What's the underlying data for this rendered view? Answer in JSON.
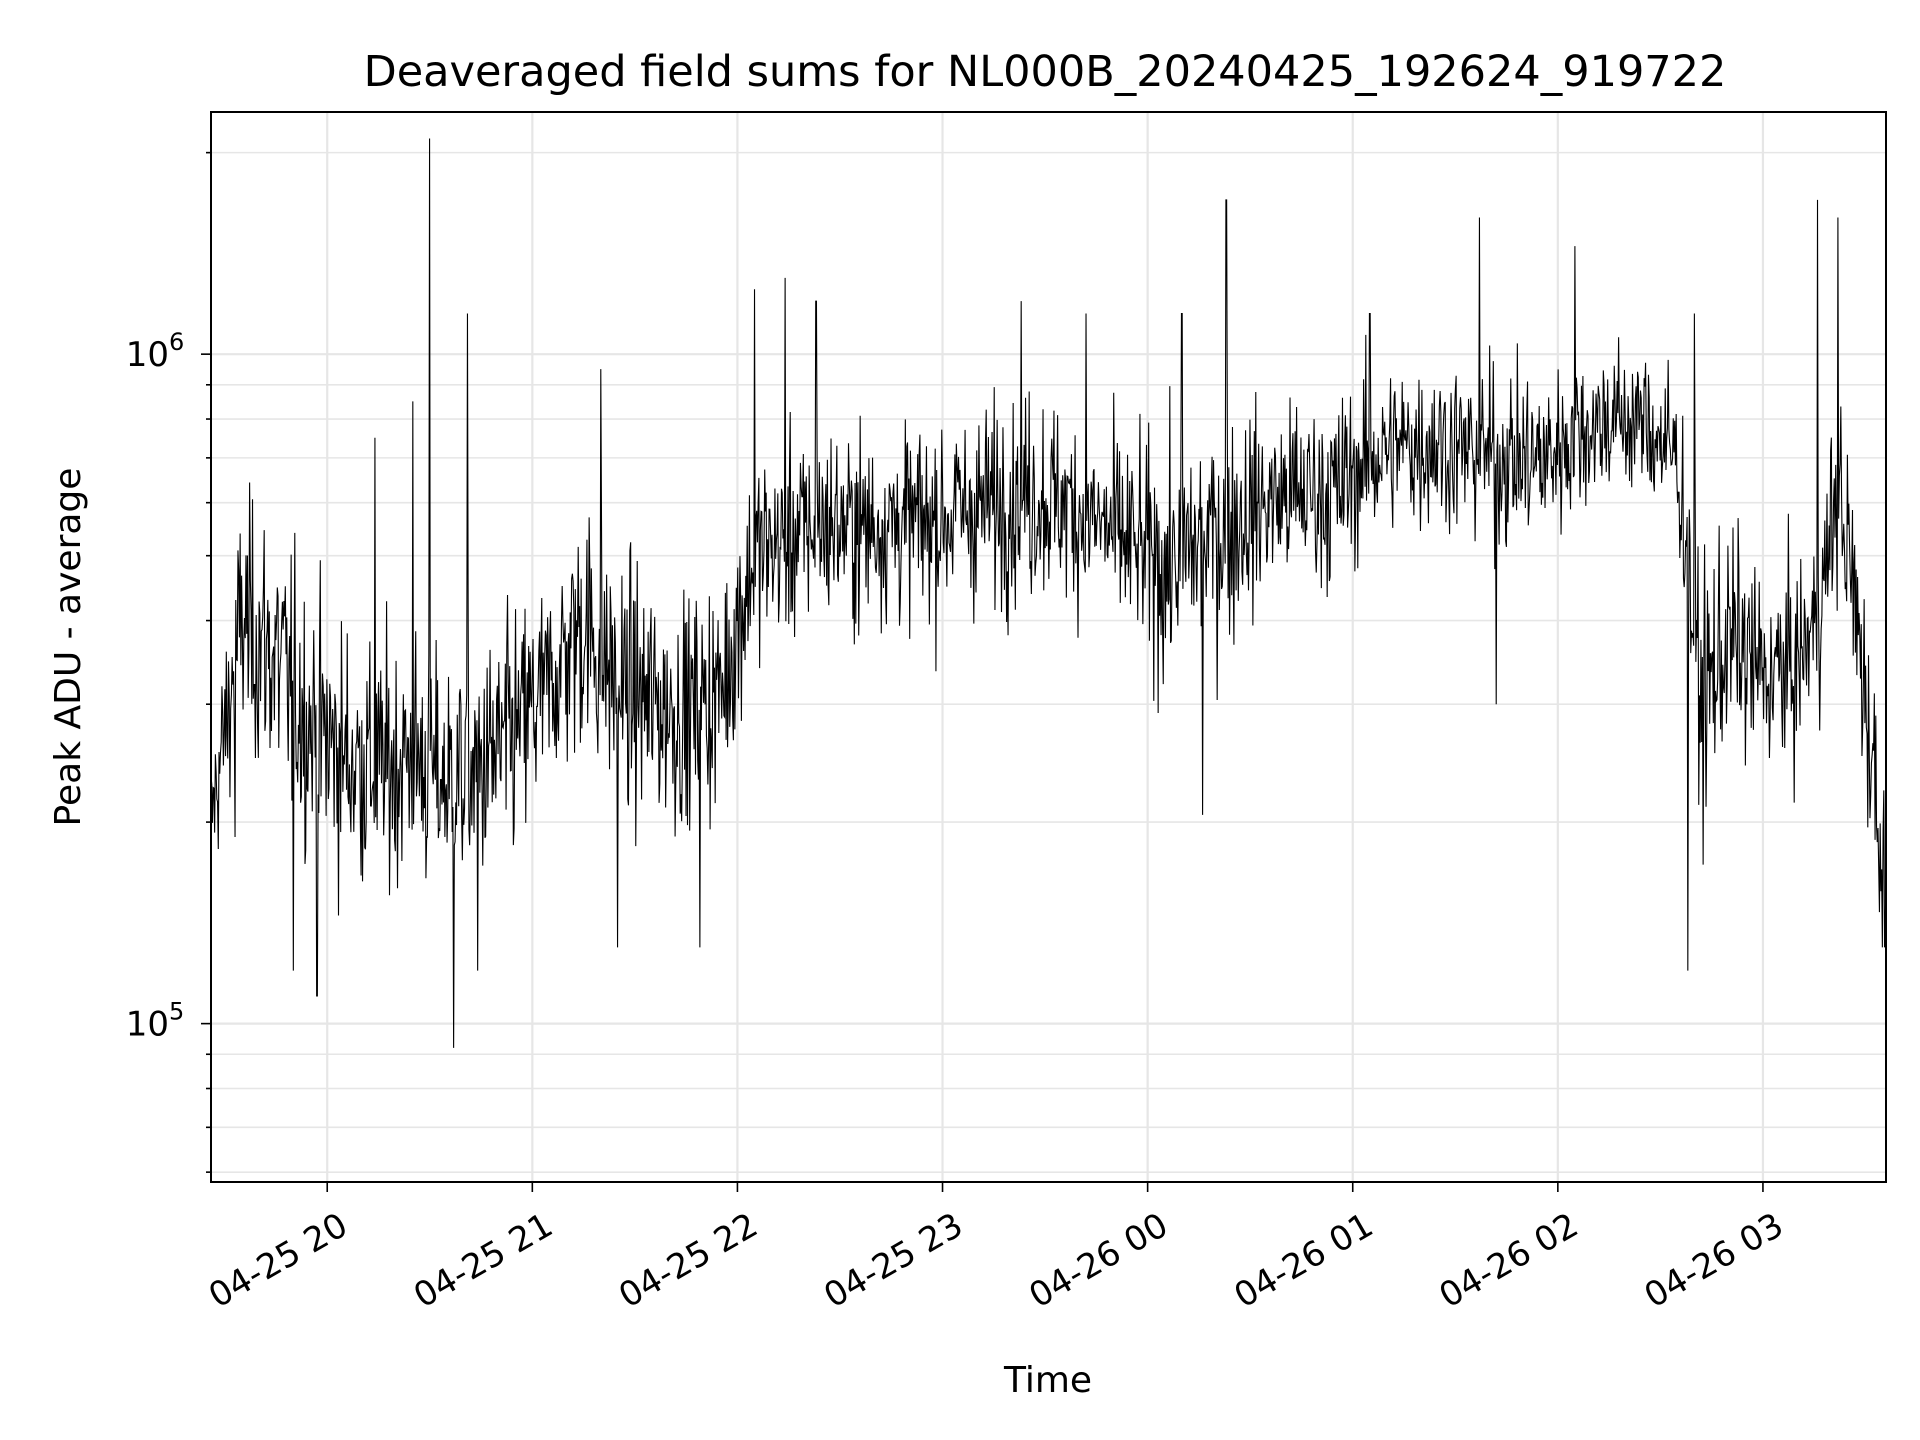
{
  "chart_data": {
    "type": "line",
    "title": "Deaveraged field sums for NL000B_20240425_192624_919722",
    "xlabel": "Time",
    "ylabel": "Peak ADU - average",
    "yscale": "log",
    "grid": true,
    "line_color": "#000000",
    "grid_color": "#e6e6e6",
    "xlim": [
      "2024-04-25 19:26",
      "2024-04-26 03:36"
    ],
    "ylim": [
      58000,
      2300000
    ],
    "xtick_labels": [
      "04-25 20",
      "04-25 21",
      "04-25 22",
      "04-25 23",
      "04-26 00",
      "04-26 01",
      "04-26 02",
      "04-26 03"
    ],
    "xtick_values": [
      "2024-04-25 20:00",
      "2024-04-25 21:00",
      "2024-04-25 22:00",
      "2024-04-25 23:00",
      "2024-04-26 00:00",
      "2024-04-26 01:00",
      "2024-04-26 02:00",
      "2024-04-26 03:00"
    ],
    "ytick_major": [
      {
        "value": 100000,
        "base": "10",
        "exp": "5"
      },
      {
        "value": 1000000,
        "base": "10",
        "exp": "6"
      }
    ],
    "series": [
      {
        "x": [
          "2024-04-25 19:26",
          "2024-04-25 19:35",
          "2024-04-25 19:45",
          "2024-04-25 19:55",
          "2024-04-25 20:05",
          "2024-04-25 20:15",
          "2024-04-25 20:25",
          "2024-04-25 20:35",
          "2024-04-25 20:45",
          "2024-04-25 20:55",
          "2024-04-25 21:05",
          "2024-04-25 21:15",
          "2024-04-25 21:25",
          "2024-04-25 21:35",
          "2024-04-25 21:45",
          "2024-04-25 21:55",
          "2024-04-25 22:05",
          "2024-04-25 22:15",
          "2024-04-25 22:25",
          "2024-04-25 22:35",
          "2024-04-25 22:45",
          "2024-04-25 22:55",
          "2024-04-25 23:05",
          "2024-04-25 23:15",
          "2024-04-25 23:25",
          "2024-04-25 23:35",
          "2024-04-25 23:45",
          "2024-04-25 23:55",
          "2024-04-26 00:05",
          "2024-04-26 00:15",
          "2024-04-26 00:25",
          "2024-04-26 00:35",
          "2024-04-26 00:45",
          "2024-04-26 00:55",
          "2024-04-26 01:05",
          "2024-04-26 01:15",
          "2024-04-26 01:25",
          "2024-04-26 01:35",
          "2024-04-26 01:45",
          "2024-04-26 01:55",
          "2024-04-26 02:05",
          "2024-04-26 02:15",
          "2024-04-26 02:25",
          "2024-04-26 02:35",
          "2024-04-26 02:42",
          "2024-04-26 02:50",
          "2024-04-26 03:00",
          "2024-04-26 03:10",
          "2024-04-26 03:17",
          "2024-04-26 03:22",
          "2024-04-26 03:28",
          "2024-04-26 03:35"
        ],
        "center": [
          200000,
          400000,
          350000,
          280000,
          250000,
          240000,
          250000,
          230000,
          240000,
          270000,
          320000,
          400000,
          320000,
          300000,
          290000,
          310000,
          500000,
          530000,
          560000,
          550000,
          560000,
          560000,
          580000,
          600000,
          620000,
          600000,
          560000,
          520000,
          480000,
          520000,
          560000,
          600000,
          620000,
          620000,
          700000,
          730000,
          740000,
          710000,
          700000,
          690000,
          760000,
          800000,
          790000,
          700000,
          300000,
          380000,
          330000,
          340000,
          420000,
          650000,
          380000,
          180000
        ],
        "upper": [
          420000,
          800000,
          780000,
          600000,
          580000,
          560000,
          620000,
          520000,
          500000,
          680000,
          700000,
          880000,
          620000,
          700000,
          700000,
          720000,
          900000,
          1000000,
          1050000,
          1000000,
          980000,
          950000,
          1050000,
          1100000,
          1200000,
          1000000,
          990000,
          950000,
          1000000,
          1100000,
          1150000,
          1050000,
          1100000,
          1100000,
          1150000,
          1250000,
          1300000,
          1250000,
          1200000,
          1200000,
          1250000,
          1300000,
          1300000,
          1100000,
          900000,
          800000,
          650000,
          650000,
          700000,
          1400000,
          800000,
          450000
        ],
        "lower": [
          180000,
          190000,
          150000,
          130000,
          120000,
          130000,
          140000,
          130000,
          120000,
          150000,
          200000,
          180000,
          150000,
          160000,
          170000,
          180000,
          270000,
          300000,
          330000,
          310000,
          300000,
          300000,
          310000,
          330000,
          340000,
          330000,
          300000,
          280000,
          250000,
          280000,
          300000,
          330000,
          350000,
          350000,
          420000,
          440000,
          460000,
          430000,
          420000,
          400000,
          470000,
          520000,
          500000,
          420000,
          170000,
          220000,
          190000,
          200000,
          230000,
          380000,
          200000,
          130000
        ],
        "spikes": [
          {
            "x": "2024-04-25 19:33",
            "y": 190000
          },
          {
            "x": "2024-04-25 19:50",
            "y": 120000
          },
          {
            "x": "2024-04-25 19:57",
            "y": 110000
          },
          {
            "x": "2024-04-25 20:14",
            "y": 750000
          },
          {
            "x": "2024-04-25 20:25",
            "y": 850000
          },
          {
            "x": "2024-04-25 20:30",
            "y": 2100000
          },
          {
            "x": "2024-04-25 20:37",
            "y": 92000
          },
          {
            "x": "2024-04-25 20:41",
            "y": 1150000
          },
          {
            "x": "2024-04-25 20:44",
            "y": 120000
          },
          {
            "x": "2024-04-25 21:20",
            "y": 950000
          },
          {
            "x": "2024-04-25 21:25",
            "y": 130000
          },
          {
            "x": "2024-04-25 21:49",
            "y": 130000
          },
          {
            "x": "2024-04-25 22:05",
            "y": 1250000
          },
          {
            "x": "2024-04-25 22:14",
            "y": 1300000
          },
          {
            "x": "2024-04-25 22:23",
            "y": 1200000
          },
          {
            "x": "2024-04-25 23:23",
            "y": 1200000
          },
          {
            "x": "2024-04-25 23:42",
            "y": 1150000
          },
          {
            "x": "2024-04-26 00:10",
            "y": 1150000
          },
          {
            "x": "2024-04-26 00:23",
            "y": 1700000
          },
          {
            "x": "2024-04-26 00:16",
            "y": 205000
          },
          {
            "x": "2024-04-26 01:05",
            "y": 1150000
          },
          {
            "x": "2024-04-26 01:37",
            "y": 1600000
          },
          {
            "x": "2024-04-26 01:42",
            "y": 300000
          },
          {
            "x": "2024-04-26 02:05",
            "y": 1450000
          },
          {
            "x": "2024-04-26 02:40",
            "y": 1150000
          },
          {
            "x": "2024-04-26 02:38",
            "y": 120000
          },
          {
            "x": "2024-04-26 03:16",
            "y": 1700000
          },
          {
            "x": "2024-04-26 03:22",
            "y": 1600000
          },
          {
            "x": "2024-04-26 03:35",
            "y": 130000
          }
        ]
      }
    ]
  }
}
